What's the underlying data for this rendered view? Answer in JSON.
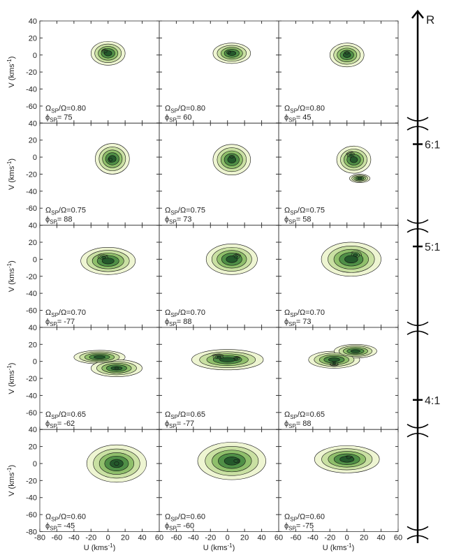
{
  "chart_data": {
    "type": "contour-grid",
    "xlabel": "U (kms",
    "ylabel": "V (kms",
    "unit_sup": "-1",
    "unit_end": ")",
    "xlim": [
      -80,
      60
    ],
    "ylim": [
      -80,
      40
    ],
    "xticks": [
      -80,
      -60,
      -40,
      -20,
      0,
      20,
      40,
      60
    ],
    "yticks": [
      -80,
      -60,
      -40,
      -20,
      0,
      20,
      40
    ],
    "ratio_symbol": "Ω",
    "ratio_sub": "SP",
    "ratio_tail": "/Ω=",
    "phi_symbol": "ϕ",
    "phi_sub": "SP",
    "phi_tail": "=",
    "colors": [
      "#eef5d2",
      "#c9e0a2",
      "#8fbf6b",
      "#4f8f46",
      "#24592b"
    ],
    "panels": [
      {
        "pattern_speed": "0.80",
        "phase": 75,
        "components": [
          [
            0,
            2,
            20,
            14
          ],
          [
            -3,
            4,
            8,
            6
          ]
        ]
      },
      {
        "pattern_speed": "0.80",
        "phase": 60,
        "components": [
          [
            5,
            2,
            22,
            12
          ],
          [
            2,
            3,
            8,
            5
          ]
        ]
      },
      {
        "pattern_speed": "0.80",
        "phase": 45,
        "components": [
          [
            0,
            0,
            20,
            14
          ],
          [
            0,
            2,
            8,
            6
          ]
        ]
      },
      {
        "pattern_speed": "0.75",
        "phase": 88,
        "components": [
          [
            5,
            -2,
            20,
            18
          ],
          [
            3,
            -3,
            8,
            8
          ]
        ]
      },
      {
        "pattern_speed": "0.75",
        "phase": 73,
        "components": [
          [
            5,
            -3,
            22,
            18
          ],
          [
            5,
            0,
            8,
            6
          ]
        ]
      },
      {
        "pattern_speed": "0.75",
        "phase": 58,
        "components": [
          [
            8,
            -3,
            20,
            16
          ],
          [
            5,
            2,
            8,
            6
          ],
          [
            15,
            -25,
            12,
            5
          ]
        ]
      },
      {
        "pattern_speed": "0.70",
        "phase": -77,
        "components": [
          [
            0,
            -2,
            32,
            16
          ],
          [
            -5,
            2,
            12,
            6
          ]
        ]
      },
      {
        "pattern_speed": "0.70",
        "phase": 88,
        "components": [
          [
            5,
            0,
            30,
            18
          ],
          [
            10,
            3,
            10,
            7
          ]
        ]
      },
      {
        "pattern_speed": "0.70",
        "phase": 73,
        "components": [
          [
            5,
            0,
            35,
            20
          ],
          [
            10,
            5,
            12,
            8
          ]
        ]
      },
      {
        "pattern_speed": "0.65",
        "phase": -62,
        "components": [
          [
            -10,
            5,
            30,
            8
          ],
          [
            10,
            -8,
            30,
            10
          ],
          [
            10,
            -8,
            10,
            5
          ]
        ]
      },
      {
        "pattern_speed": "0.65",
        "phase": -77,
        "components": [
          [
            0,
            2,
            42,
            12
          ],
          [
            -10,
            5,
            12,
            5
          ],
          [
            10,
            3,
            10,
            5
          ]
        ]
      },
      {
        "pattern_speed": "0.65",
        "phase": 88,
        "components": [
          [
            -15,
            2,
            30,
            10
          ],
          [
            10,
            12,
            25,
            8
          ],
          [
            -15,
            -2,
            8,
            4
          ]
        ]
      },
      {
        "pattern_speed": "0.60",
        "phase": -45,
        "components": [
          [
            10,
            0,
            35,
            22
          ],
          [
            10,
            0,
            12,
            10
          ]
        ]
      },
      {
        "pattern_speed": "0.60",
        "phase": -60,
        "components": [
          [
            5,
            3,
            40,
            22
          ],
          [
            10,
            3,
            12,
            8
          ]
        ]
      },
      {
        "pattern_speed": "0.60",
        "phase": -75,
        "components": [
          [
            0,
            5,
            38,
            16
          ],
          [
            2,
            7,
            12,
            6
          ]
        ]
      }
    ],
    "resonance_axis": {
      "label": "R",
      "rlim": [
        0.83,
        0.57
      ],
      "brackets": [
        0.775,
        0.725,
        0.675,
        0.625,
        0.575
      ],
      "ticks": [
        {
          "value": 0.765,
          "label": "6:1"
        },
        {
          "value": 0.715,
          "label": "5:1"
        },
        {
          "value": 0.64,
          "label": "4:1"
        }
      ]
    }
  }
}
